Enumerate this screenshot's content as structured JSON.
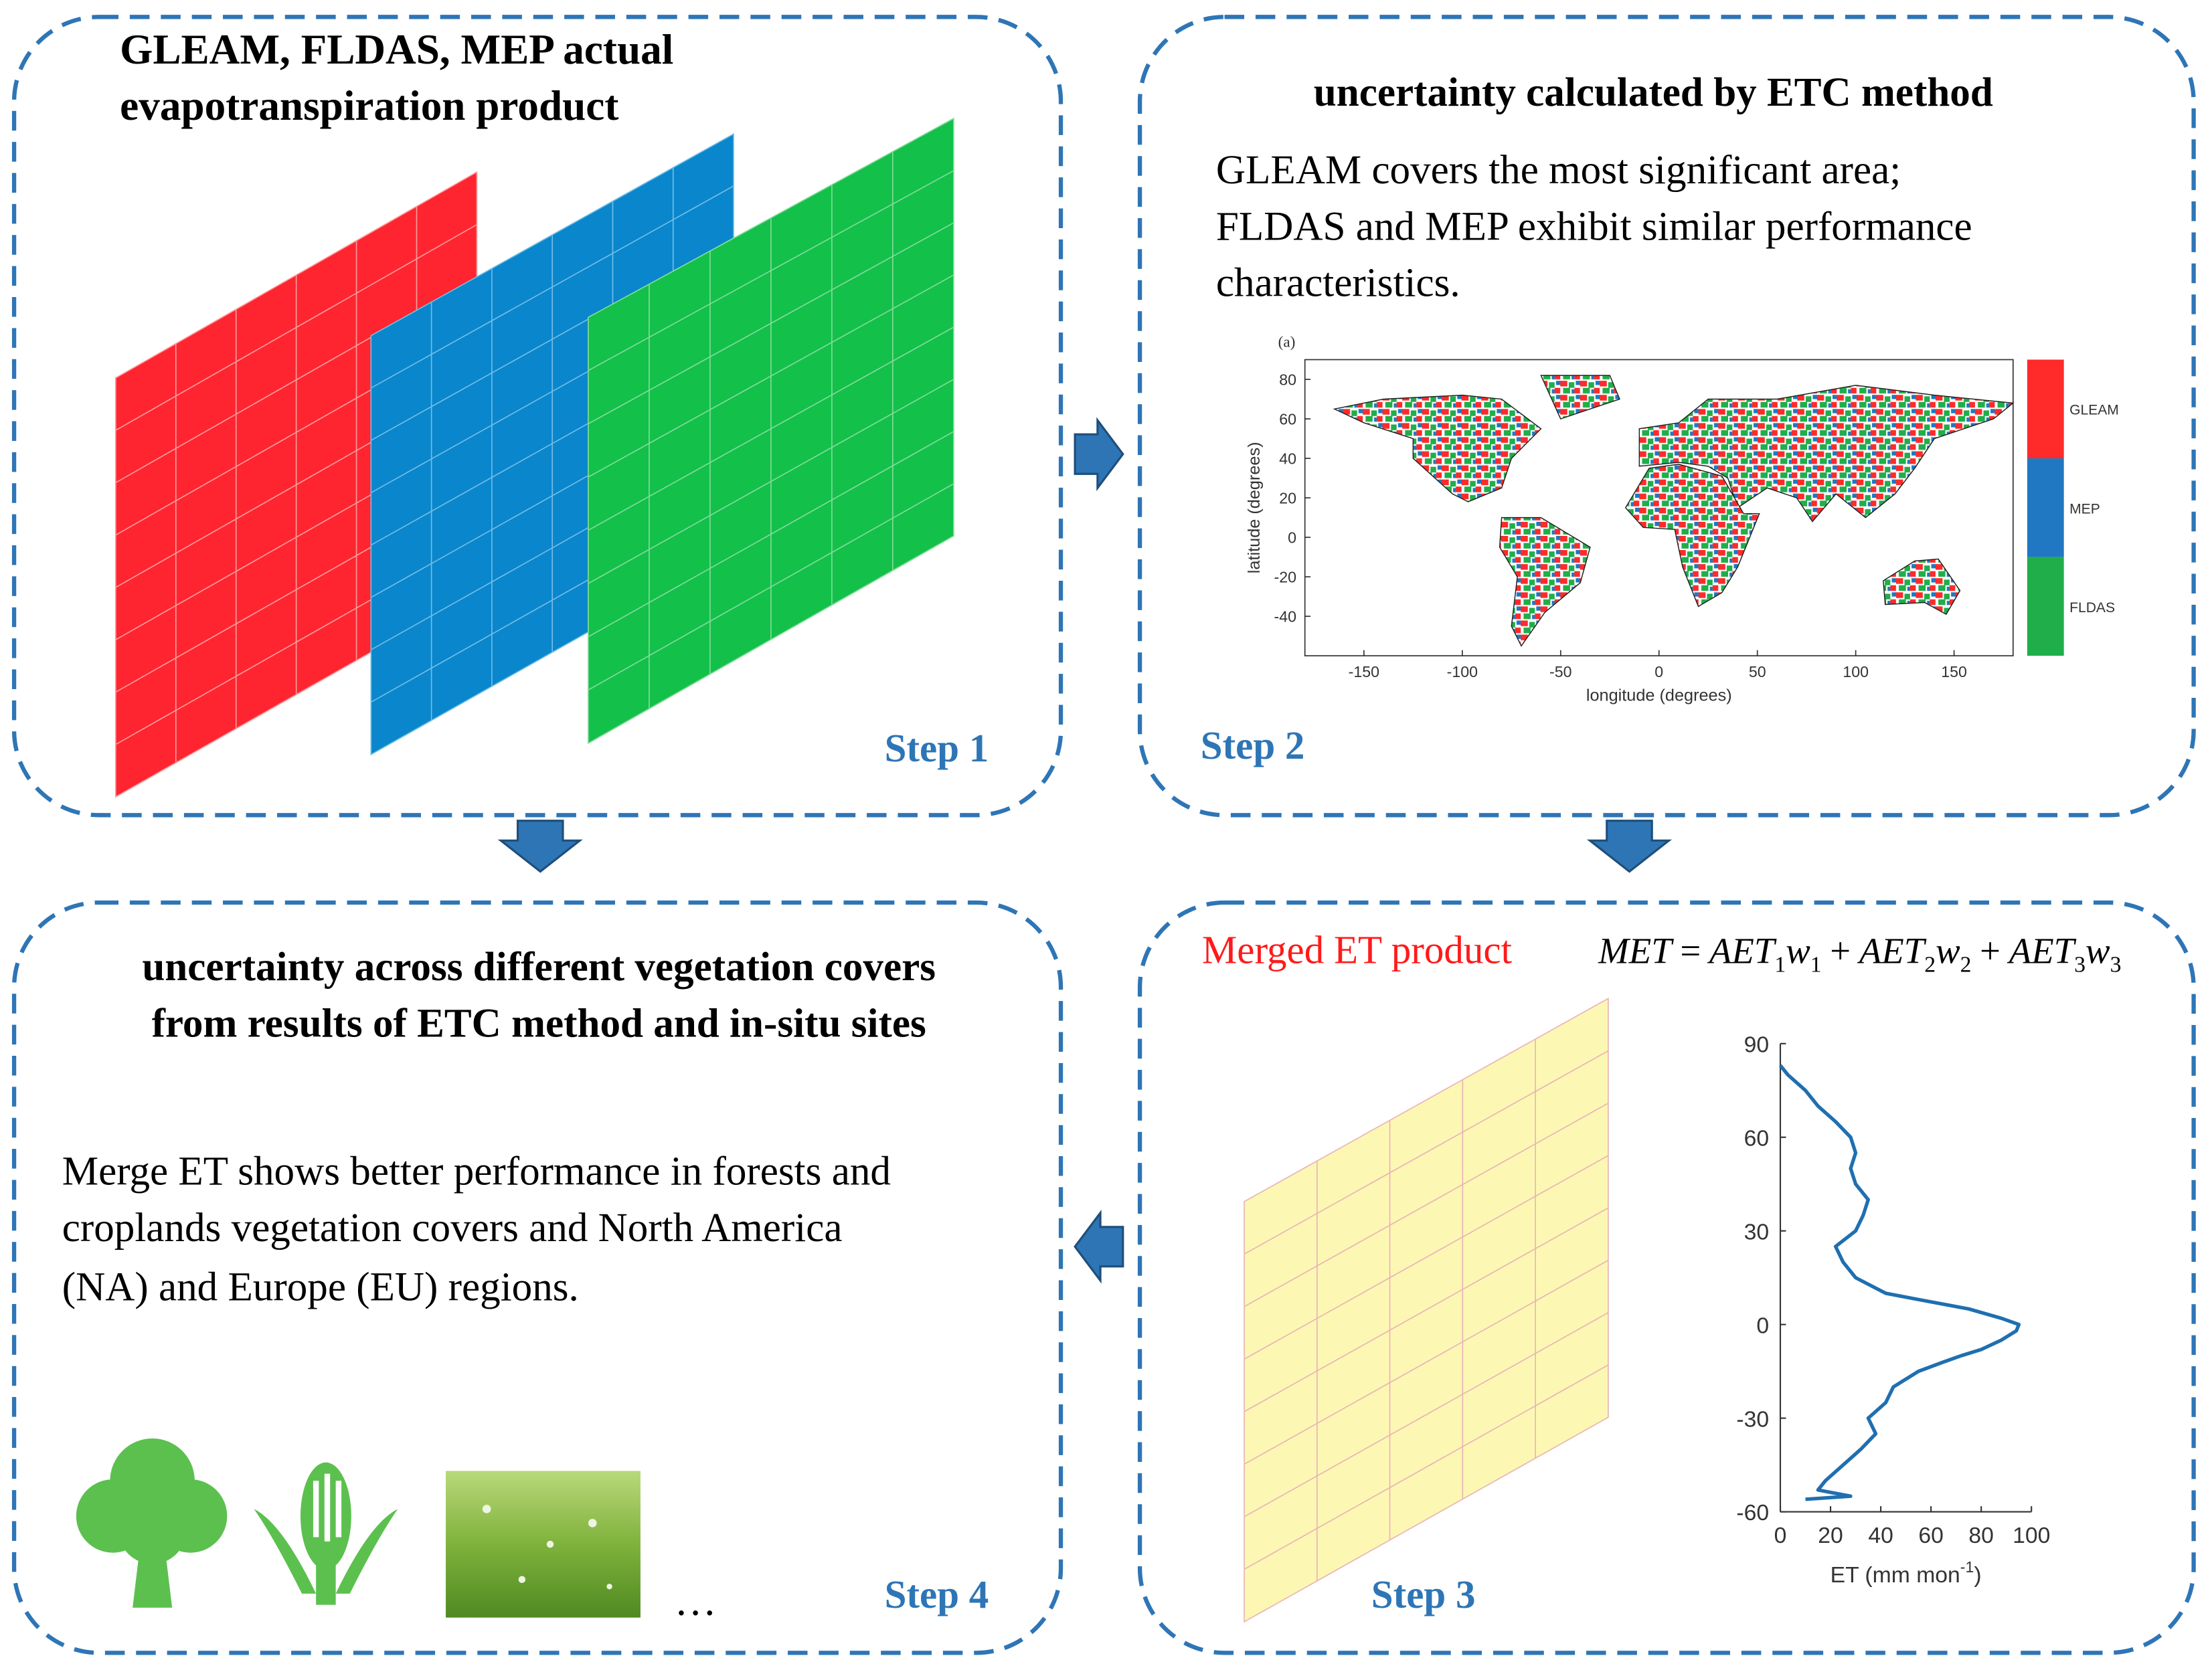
{
  "panels": [
    {
      "title": [
        "GLEAM, FLDAS, MEP actual",
        "evapotranspiration product"
      ],
      "step": "Step 1"
    },
    {
      "title": [
        "uncertainty calculated by ETC method"
      ],
      "body": [
        "GLEAM  covers the most significant area;",
        "FLDAS and MEP exhibit similar performance",
        "characteristics."
      ],
      "step": "Step 2"
    },
    {
      "title": [
        "Merged ET product"
      ],
      "step": "Step 3"
    },
    {
      "title": [
        "uncertainty across different vegetation covers",
        "from results of ETC method and in-situ sites"
      ],
      "body": [
        "Merge ET shows better performance in forests and",
        "croplands vegetation covers and North America",
        "(NA) and Europe (EU) regions."
      ],
      "step": "Step 4",
      "ellipsis": "…"
    }
  ],
  "formula": [
    {
      "text": "MET"
    },
    {
      "text": "="
    },
    {
      "text": "AET",
      "sub": "1"
    },
    {
      "text": "w",
      "sub": "1"
    },
    {
      "text": "+"
    },
    {
      "text": "AET",
      "sub": "2"
    },
    {
      "text": "w",
      "sub": "2"
    },
    {
      "text": "+"
    },
    {
      "text": "AET",
      "sub": "3"
    },
    {
      "text": "w",
      "sub": "3"
    }
  ],
  "map_chart": {
    "type": "map",
    "panel_label": "(a)",
    "xlabel": "longitude (degrees)",
    "ylabel": "latitude (degrees)",
    "xlim": [
      -180,
      180
    ],
    "ylim": [
      -60,
      90
    ],
    "xticks": [
      -150,
      -100,
      -50,
      0,
      50,
      100,
      150
    ],
    "yticks": [
      80,
      60,
      40,
      20,
      0,
      -20,
      -40
    ],
    "legend": [
      {
        "name": "GLEAM",
        "color": "#ff2a2a"
      },
      {
        "name": "MEP",
        "color": "#1f78c1"
      },
      {
        "name": "FLDAS",
        "color": "#1fae4a"
      }
    ]
  },
  "et_chart": {
    "type": "line",
    "color": "#1f6fb0",
    "lat": [
      83,
      80,
      75,
      70,
      65,
      60,
      55,
      50,
      45,
      40,
      35,
      30,
      25,
      20,
      15,
      10,
      8,
      5,
      2,
      0,
      -2,
      -5,
      -8,
      -10,
      -12,
      -15,
      -20,
      -25,
      -30,
      -35,
      -40,
      -45,
      -50,
      -53,
      -55,
      -56
    ],
    "values": [
      0,
      3,
      10,
      15,
      22,
      28,
      30,
      28,
      30,
      35,
      33,
      30,
      22,
      25,
      30,
      42,
      55,
      75,
      88,
      95,
      94,
      88,
      80,
      72,
      65,
      55,
      45,
      42,
      35,
      38,
      32,
      25,
      18,
      15,
      28,
      10
    ],
    "xlim": [
      0,
      100
    ],
    "ylim": [
      -60,
      90
    ],
    "xticks": [
      0,
      20,
      40,
      60,
      80,
      100
    ],
    "yticks": [
      90,
      60,
      30,
      0,
      -30,
      -60
    ],
    "xlabel": {
      "text": "ET (mm mon",
      "sup": "-1",
      "tail": ")"
    }
  }
}
